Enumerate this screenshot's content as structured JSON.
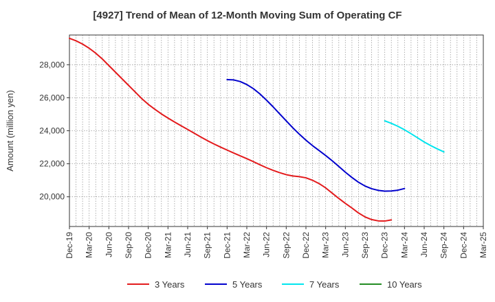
{
  "chart_data": {
    "type": "line",
    "title": "[4927]  Trend of Mean of 12-Month Moving Sum of Operating CF",
    "xlabel": "",
    "ylabel": "Amount (million yen)",
    "ylim": [
      18200,
      29800
    ],
    "yticks": [
      20000,
      22000,
      24000,
      26000,
      28000
    ],
    "ytick_labels": [
      "20,000",
      "22,000",
      "24,000",
      "26,000",
      "28,000"
    ],
    "x_start": "Dec-19",
    "x_end": "Mar-25",
    "month_count": 63,
    "xtick_labels": [
      "Dec-19",
      "Mar-20",
      "Jun-20",
      "Sep-20",
      "Dec-20",
      "Mar-21",
      "Jun-21",
      "Sep-21",
      "Dec-21",
      "Mar-22",
      "Jun-22",
      "Sep-22",
      "Dec-22",
      "Mar-23",
      "Jun-23",
      "Sep-23",
      "Dec-23",
      "Mar-24",
      "Jun-24",
      "Sep-24",
      "Dec-24",
      "Mar-25"
    ],
    "grid": true,
    "legend_position": "bottom",
    "series": [
      {
        "name": "3 Years",
        "color": "#e31a1c",
        "start_month_index": 0,
        "values": [
          29600,
          29450,
          29250,
          29000,
          28700,
          28350,
          27950,
          27550,
          27150,
          26750,
          26350,
          25950,
          25600,
          25300,
          25020,
          24770,
          24530,
          24300,
          24080,
          23850,
          23620,
          23400,
          23200,
          23010,
          22830,
          22650,
          22480,
          22310,
          22130,
          21940,
          21760,
          21600,
          21460,
          21340,
          21260,
          21220,
          21150,
          21000,
          20800,
          20540,
          20220,
          19900,
          19600,
          19320,
          19020,
          18780,
          18620,
          18540,
          18530,
          18600
        ]
      },
      {
        "name": "5 Years",
        "color": "#0000cd",
        "start_month_index": 24,
        "values": [
          27100,
          27080,
          26980,
          26800,
          26550,
          26230,
          25850,
          25450,
          25020,
          24600,
          24180,
          23790,
          23430,
          23100,
          22800,
          22500,
          22180,
          21840,
          21490,
          21170,
          20880,
          20650,
          20490,
          20390,
          20340,
          20350,
          20400,
          20500
        ]
      },
      {
        "name": "7 Years",
        "color": "#00e5ee",
        "start_month_index": 48,
        "values": [
          24600,
          24450,
          24270,
          24060,
          23820,
          23570,
          23320,
          23100,
          22900,
          22720
        ]
      },
      {
        "name": "10 Years",
        "color": "#228b22",
        "start_month_index": 0,
        "values": []
      }
    ]
  }
}
